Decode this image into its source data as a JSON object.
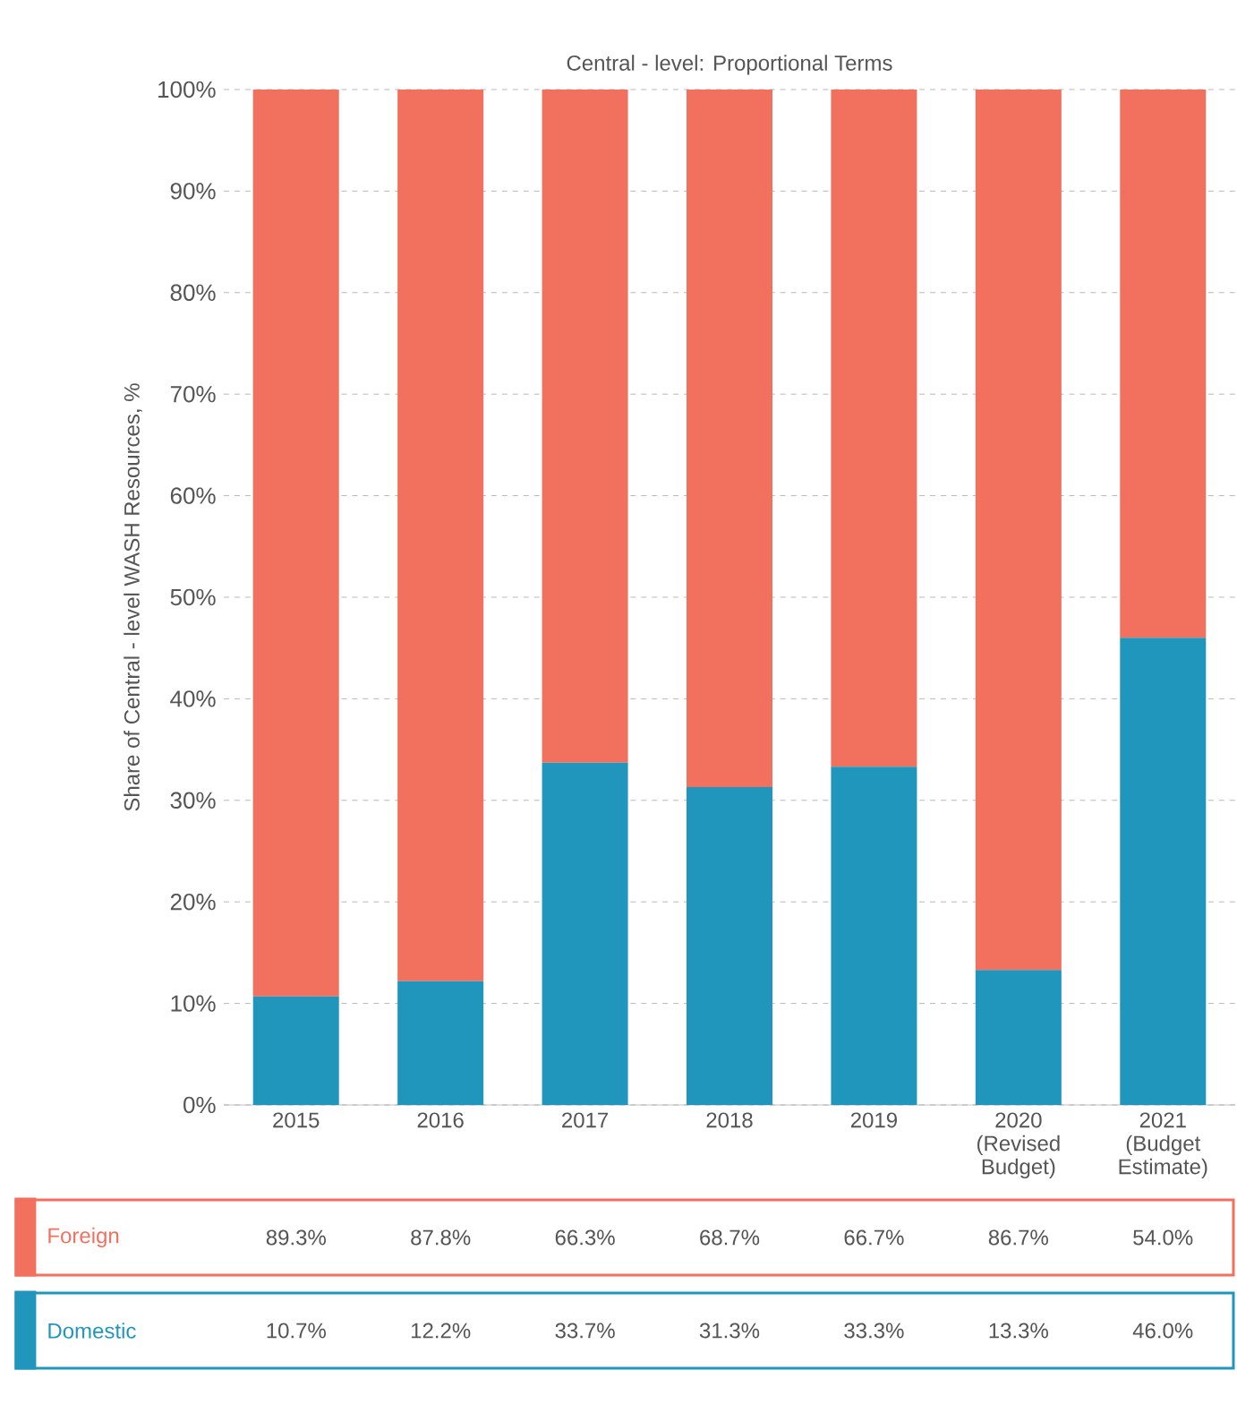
{
  "chart_data": {
    "type": "bar",
    "stacked": true,
    "title": "Central - level: Proportional Terms",
    "ylabel": "Share of Central - level WASH Resources, %",
    "categories": [
      "2015",
      "2016",
      "2017",
      "2018",
      "2019",
      "2020 (Revised Budget)",
      "2021 (Budget Estimate)"
    ],
    "series": [
      {
        "name": "Domestic",
        "color": "#2196bd",
        "values": [
          10.7,
          12.2,
          33.7,
          31.3,
          33.3,
          13.3,
          46.0
        ],
        "value_labels": [
          "10.7%",
          "12.2%",
          "33.7%",
          "31.3%",
          "33.3%",
          "13.3%",
          "46.0%"
        ]
      },
      {
        "name": "Foreign",
        "color": "#f2705e",
        "values": [
          89.3,
          87.8,
          66.3,
          68.7,
          66.7,
          86.7,
          54.0
        ],
        "value_labels": [
          "89.3%",
          "87.8%",
          "66.3%",
          "68.7%",
          "66.7%",
          "86.7%",
          "54.0%"
        ]
      }
    ],
    "ylim": [
      0,
      100
    ],
    "yticks": [
      {
        "value": 0,
        "label": "0%"
      },
      {
        "value": 10,
        "label": "10%"
      },
      {
        "value": 20,
        "label": "20%"
      },
      {
        "value": 30,
        "label": "30%"
      },
      {
        "value": 40,
        "label": "40%"
      },
      {
        "value": 50,
        "label": "50%"
      },
      {
        "value": 60,
        "label": "60%"
      },
      {
        "value": 70,
        "label": "70%"
      },
      {
        "value": 80,
        "label": "80%"
      },
      {
        "value": 90,
        "label": "90%"
      },
      {
        "value": 100,
        "label": "100%"
      }
    ],
    "grid": "y"
  }
}
